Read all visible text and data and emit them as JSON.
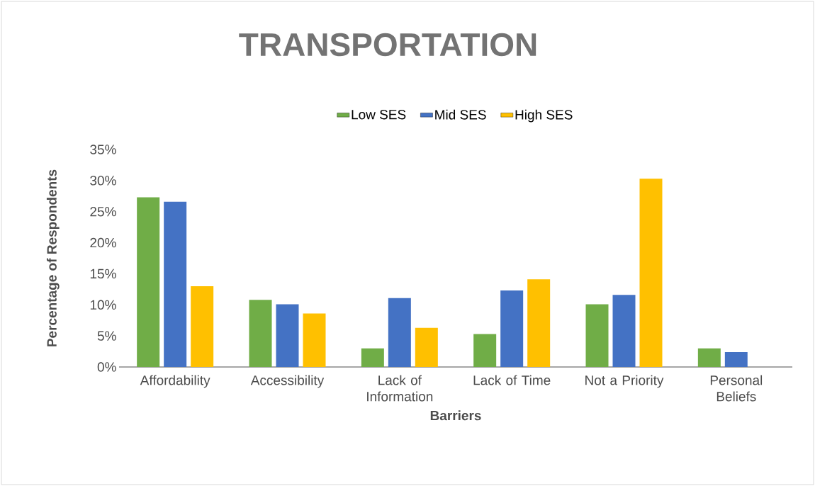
{
  "chart_data": {
    "type": "bar",
    "title": "TRANSPORTATION",
    "xlabel": "Barriers",
    "ylabel": "Percentage of Respondents",
    "categories": [
      "Affordability",
      "Accessibility",
      "Lack of Information",
      "Lack of Time",
      "Not a Priority",
      "Personal Beliefs"
    ],
    "series": [
      {
        "name": "Low SES",
        "color": "#70ad47",
        "values": [
          27.3,
          10.8,
          3.0,
          5.3,
          10.1,
          3.0
        ]
      },
      {
        "name": "Mid SES",
        "color": "#4472c4",
        "values": [
          26.6,
          10.1,
          11.1,
          12.3,
          11.6,
          2.4
        ]
      },
      {
        "name": "High SES",
        "color": "#ffc000",
        "values": [
          13.0,
          8.6,
          6.3,
          14.1,
          30.3,
          0
        ]
      }
    ],
    "ylim": [
      0,
      35
    ],
    "yticks": [
      {
        "value": 0,
        "label": "0%"
      },
      {
        "value": 5,
        "label": "5%"
      },
      {
        "value": 10,
        "label": "10%"
      },
      {
        "value": 15,
        "label": "15%"
      },
      {
        "value": 20,
        "label": "20%"
      },
      {
        "value": 25,
        "label": "25%"
      },
      {
        "value": 30,
        "label": "30%"
      },
      {
        "value": 35,
        "label": "35%"
      }
    ],
    "grid": false,
    "legend": "top"
  }
}
